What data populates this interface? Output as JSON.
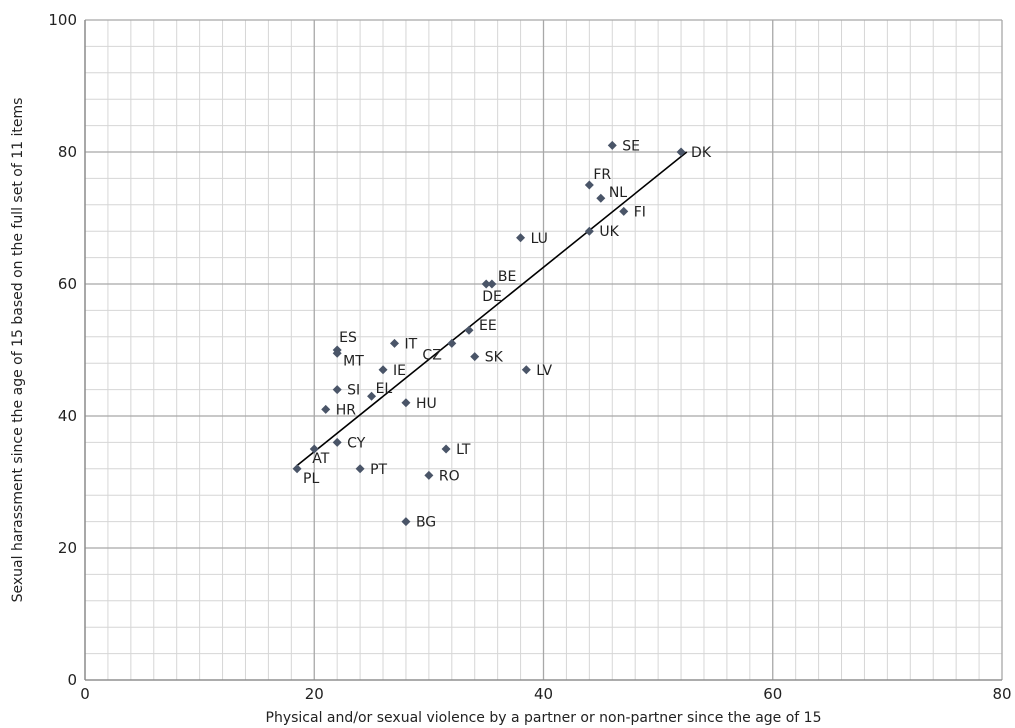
{
  "chart_data": {
    "type": "scatter",
    "title": "",
    "xlabel": "Physical and/or sexual violence by a partner or non-partner since the age of 15",
    "ylabel": "Sexual harassment since the age of 15 based on the full set of 11 items",
    "xlim": [
      0,
      80
    ],
    "ylim": [
      0,
      100
    ],
    "x_ticks": [
      0,
      20,
      40,
      60,
      80
    ],
    "y_ticks": [
      0,
      20,
      40,
      60,
      80,
      100
    ],
    "grid": "major and minor",
    "marker_color": "#4a5568",
    "trendline_color": "#000000",
    "trendline": {
      "x": [
        18.5,
        52.5
      ],
      "y": [
        32.5,
        80
      ]
    },
    "points": [
      {
        "label": "SE",
        "x": 46,
        "y": 81
      },
      {
        "label": "DK",
        "x": 52,
        "y": 80
      },
      {
        "label": "FR",
        "x": 44,
        "y": 75
      },
      {
        "label": "NL",
        "x": 45,
        "y": 73
      },
      {
        "label": "FI",
        "x": 47,
        "y": 71
      },
      {
        "label": "UK",
        "x": 44,
        "y": 68
      },
      {
        "label": "LU",
        "x": 38,
        "y": 67
      },
      {
        "label": "BE",
        "x": 35.5,
        "y": 60
      },
      {
        "label": "DE",
        "x": 35,
        "y": 60
      },
      {
        "label": "EE",
        "x": 33.5,
        "y": 53
      },
      {
        "label": "IT",
        "x": 27,
        "y": 51
      },
      {
        "label": "CZ",
        "x": 32,
        "y": 51
      },
      {
        "label": "ES",
        "x": 22,
        "y": 50
      },
      {
        "label": "MT",
        "x": 22,
        "y": 49.5
      },
      {
        "label": "SK",
        "x": 34,
        "y": 49
      },
      {
        "label": "IE",
        "x": 26,
        "y": 47
      },
      {
        "label": "LV",
        "x": 38.5,
        "y": 47
      },
      {
        "label": "SI",
        "x": 22,
        "y": 44
      },
      {
        "label": "EL",
        "x": 25,
        "y": 43
      },
      {
        "label": "HU",
        "x": 28,
        "y": 42
      },
      {
        "label": "HR",
        "x": 21,
        "y": 41
      },
      {
        "label": "CY",
        "x": 22,
        "y": 36
      },
      {
        "label": "LT",
        "x": 31.5,
        "y": 35
      },
      {
        "label": "AT",
        "x": 20,
        "y": 35
      },
      {
        "label": "PT",
        "x": 24,
        "y": 32
      },
      {
        "label": "PL",
        "x": 18.5,
        "y": 32
      },
      {
        "label": "RO",
        "x": 30,
        "y": 31
      },
      {
        "label": "BG",
        "x": 28,
        "y": 24
      }
    ]
  }
}
